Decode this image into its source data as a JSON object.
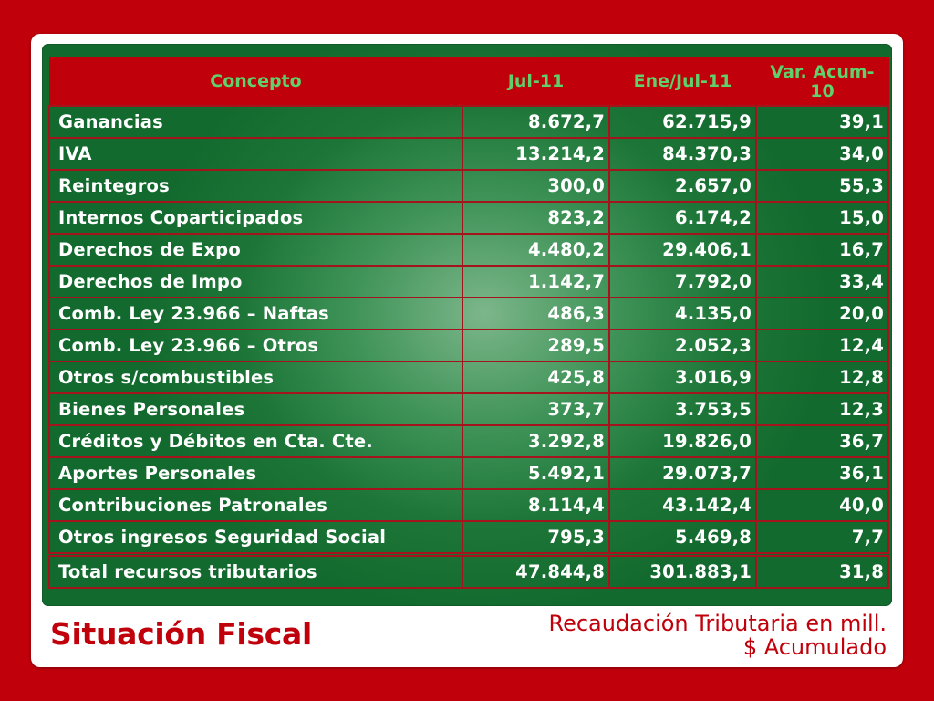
{
  "slide": {
    "title": "Situación Fiscal",
    "subtitle_line1": "Recaudación Tributaria en mill.",
    "subtitle_line2": "$  Acumulado"
  },
  "table": {
    "headers": {
      "concepto": "Concepto",
      "jul": "Jul-11",
      "ene_jul": "Ene/Jul-11",
      "var": "Var. Acum-10"
    },
    "rows": [
      {
        "concepto": "Ganancias",
        "jul": "8.672,7",
        "ene_jul": "62.715,9",
        "var": "39,1"
      },
      {
        "concepto": "IVA",
        "jul": "13.214,2",
        "ene_jul": "84.370,3",
        "var": "34,0"
      },
      {
        "concepto": "Reintegros",
        "jul": "300,0",
        "ene_jul": "2.657,0",
        "var": "55,3"
      },
      {
        "concepto": "Internos Coparticipados",
        "jul": "823,2",
        "ene_jul": "6.174,2",
        "var": "15,0"
      },
      {
        "concepto": "Derechos de Expo",
        "jul": "4.480,2",
        "ene_jul": "29.406,1",
        "var": "16,7"
      },
      {
        "concepto": "Derechos de Impo",
        "jul": "1.142,7",
        "ene_jul": "7.792,0",
        "var": "33,4"
      },
      {
        "concepto": "Comb. Ley 23.966 – Naftas",
        "jul": "486,3",
        "ene_jul": "4.135,0",
        "var": "20,0"
      },
      {
        "concepto": "Comb. Ley 23.966 – Otros",
        "jul": "289,5",
        "ene_jul": "2.052,3",
        "var": "12,4"
      },
      {
        "concepto": "Otros s/combustibles",
        "jul": "425,8",
        "ene_jul": "3.016,9",
        "var": "12,8"
      },
      {
        "concepto": "Bienes Personales",
        "jul": "373,7",
        "ene_jul": "3.753,5",
        "var": "12,3"
      },
      {
        "concepto": "Créditos y Débitos en Cta. Cte.",
        "jul": "3.292,8",
        "ene_jul": "19.826,0",
        "var": "36,7"
      },
      {
        "concepto": "Aportes Personales",
        "jul": "5.492,1",
        "ene_jul": "29.073,7",
        "var": "36,1"
      },
      {
        "concepto": "Contribuciones Patronales",
        "jul": "8.114,4",
        "ene_jul": "43.142,4",
        "var": "40,0"
      },
      {
        "concepto": "Otros ingresos Seguridad Social",
        "jul": "795,3",
        "ene_jul": "5.469,8",
        "var": "7,7"
      }
    ],
    "total": {
      "concepto": "Total recursos tributarios",
      "jul": "47.844,8",
      "ene_jul": "301.883,1",
      "var": "31,8"
    }
  },
  "colors": {
    "background": "#c0000a",
    "header_text": "#5fd06a",
    "panel_green": "#1d7638",
    "cell_border": "#a3141c",
    "title_text": "#c0000a"
  }
}
